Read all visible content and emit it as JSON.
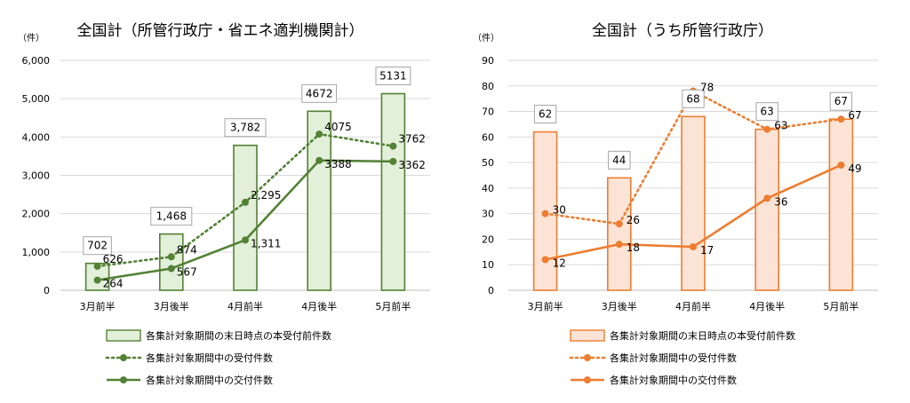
{
  "chart_data": [
    {
      "type": "bar",
      "title": "全国計（所管行政庁・省エネ適判機関計）",
      "ylabel": "（件）",
      "ylim": [
        0,
        6000
      ],
      "yticks": [
        "0",
        "1,000",
        "2,000",
        "3,000",
        "4,000",
        "5,000",
        "6,000"
      ],
      "categories": [
        "3月前半",
        "3月後半",
        "4月前半",
        "4月後半",
        "5月前半"
      ],
      "colors": {
        "bar_fill": "#e2efd9",
        "bar_stroke": "#538135",
        "line": "#538135"
      },
      "series": [
        {
          "name": "各集計対象期間の末日時点の本受付前件数",
          "type": "bar",
          "values": [
            702,
            1468,
            3782,
            4672,
            5131
          ],
          "labels": [
            "702",
            "1,468",
            "3,782",
            "4672",
            "5131"
          ]
        },
        {
          "name": "各集計対象期間中の受付件数",
          "type": "line-dotted",
          "values": [
            626,
            874,
            2295,
            4075,
            3762
          ],
          "labels": [
            "626",
            "874",
            "2,295",
            "4075",
            "3762"
          ]
        },
        {
          "name": "各集計対象期間中の交付件数",
          "type": "line",
          "values": [
            264,
            567,
            1311,
            3388,
            3362
          ],
          "labels": [
            "264",
            "567",
            "1,311",
            "3388",
            "3362"
          ]
        }
      ],
      "legend_position": "bottom"
    },
    {
      "type": "bar",
      "title": "全国計（うち所管行政庁）",
      "ylabel": "（件）",
      "ylim": [
        0,
        90
      ],
      "yticks": [
        "0",
        "10",
        "20",
        "30",
        "40",
        "50",
        "60",
        "70",
        "80",
        "90"
      ],
      "categories": [
        "3月前半",
        "3月後半",
        "4月前半",
        "4月後半",
        "5月前半"
      ],
      "colors": {
        "bar_fill": "#fbe4d5",
        "bar_stroke": "#ed7d31",
        "line": "#ed7d31"
      },
      "series": [
        {
          "name": "各集計対象期間の末日時点の本受付前件数",
          "type": "bar",
          "values": [
            62,
            44,
            68,
            63,
            67
          ],
          "labels": [
            "62",
            "44",
            "68",
            "63",
            "67"
          ]
        },
        {
          "name": "各集計対象期間中の受付件数",
          "type": "line-dotted",
          "values": [
            30,
            26,
            78,
            63,
            67
          ],
          "labels": [
            "30",
            "26",
            "78",
            "63",
            "67"
          ]
        },
        {
          "name": "各集計対象期間中の交付件数",
          "type": "line",
          "values": [
            12,
            18,
            17,
            36,
            49
          ],
          "labels": [
            "12",
            "18",
            "17",
            "36",
            "49"
          ]
        }
      ],
      "legend_position": "bottom"
    }
  ]
}
